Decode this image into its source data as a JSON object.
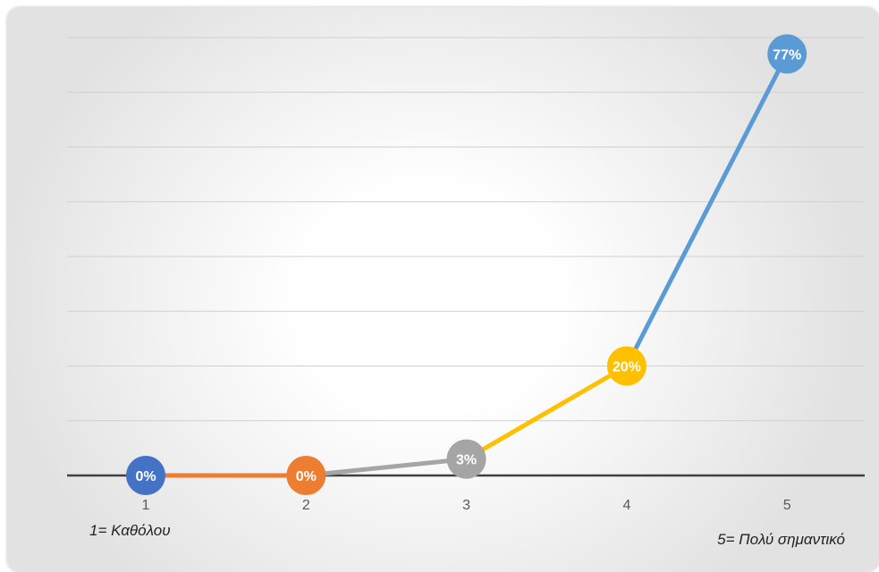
{
  "chart_data": {
    "type": "line",
    "x": [
      "1",
      "2",
      "3",
      "4",
      "5"
    ],
    "values": [
      0,
      0,
      3,
      20,
      77
    ],
    "data_labels": [
      "0%",
      "0%",
      "3%",
      "20%",
      "77%"
    ],
    "ylim": [
      0,
      80
    ],
    "grid": true,
    "point_colors": [
      "#4472C4",
      "#ED7D31",
      "#A5A5A5",
      "#FFC000",
      "#5B9BD5"
    ],
    "segment_colors": [
      "#ED7D31",
      "#A5A5A5",
      "#FFC000",
      "#5B9BD5"
    ],
    "axis_color": "#404040",
    "grid_color": "#d0d0d0"
  },
  "notes": {
    "left": "1= Καθόλου",
    "right": "5= Πολύ σημαντικό"
  }
}
